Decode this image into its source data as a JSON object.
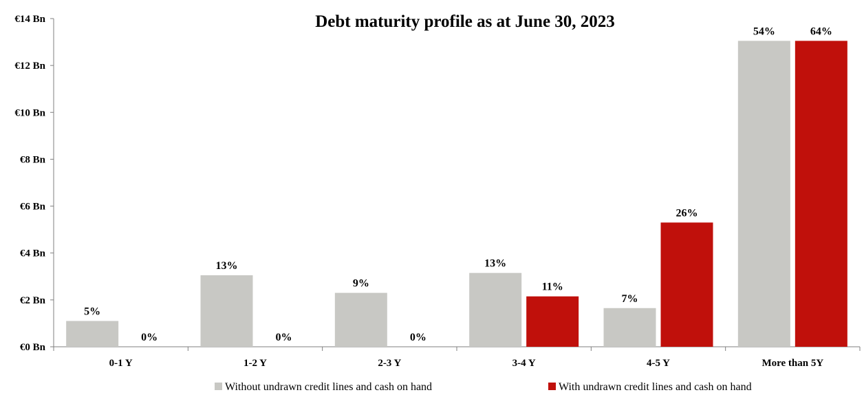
{
  "chart_data": {
    "type": "bar",
    "title": "Debt maturity profile as at June 30, 2023",
    "xlabel": "",
    "ylabel": "",
    "ylim": [
      0,
      14
    ],
    "y_ticks": [
      "€0 Bn",
      "€2 Bn",
      "€4 Bn",
      "€6 Bn",
      "€8 Bn",
      "€10 Bn",
      "€12 Bn",
      "€14 Bn"
    ],
    "categories": [
      "0-1 Y",
      "1-2 Y",
      "2-3 Y",
      "3-4 Y",
      "4-5 Y",
      "More than 5Y"
    ],
    "series": [
      {
        "name": "Without undrawn credit lines and cash on hand",
        "color": "#c8c8c4",
        "values": [
          1.1,
          3.05,
          2.3,
          3.15,
          1.65,
          13.05
        ],
        "labels": [
          "5%",
          "13%",
          "9%",
          "13%",
          "7%",
          "54%"
        ]
      },
      {
        "name": "With undrawn credit lines and cash on hand",
        "color": "#c0100b",
        "values": [
          0,
          0,
          0,
          2.15,
          5.3,
          13.05
        ],
        "labels": [
          "0%",
          "0%",
          "0%",
          "11%",
          "26%",
          "64%"
        ]
      }
    ],
    "grid": false,
    "legend_position": "bottom"
  }
}
